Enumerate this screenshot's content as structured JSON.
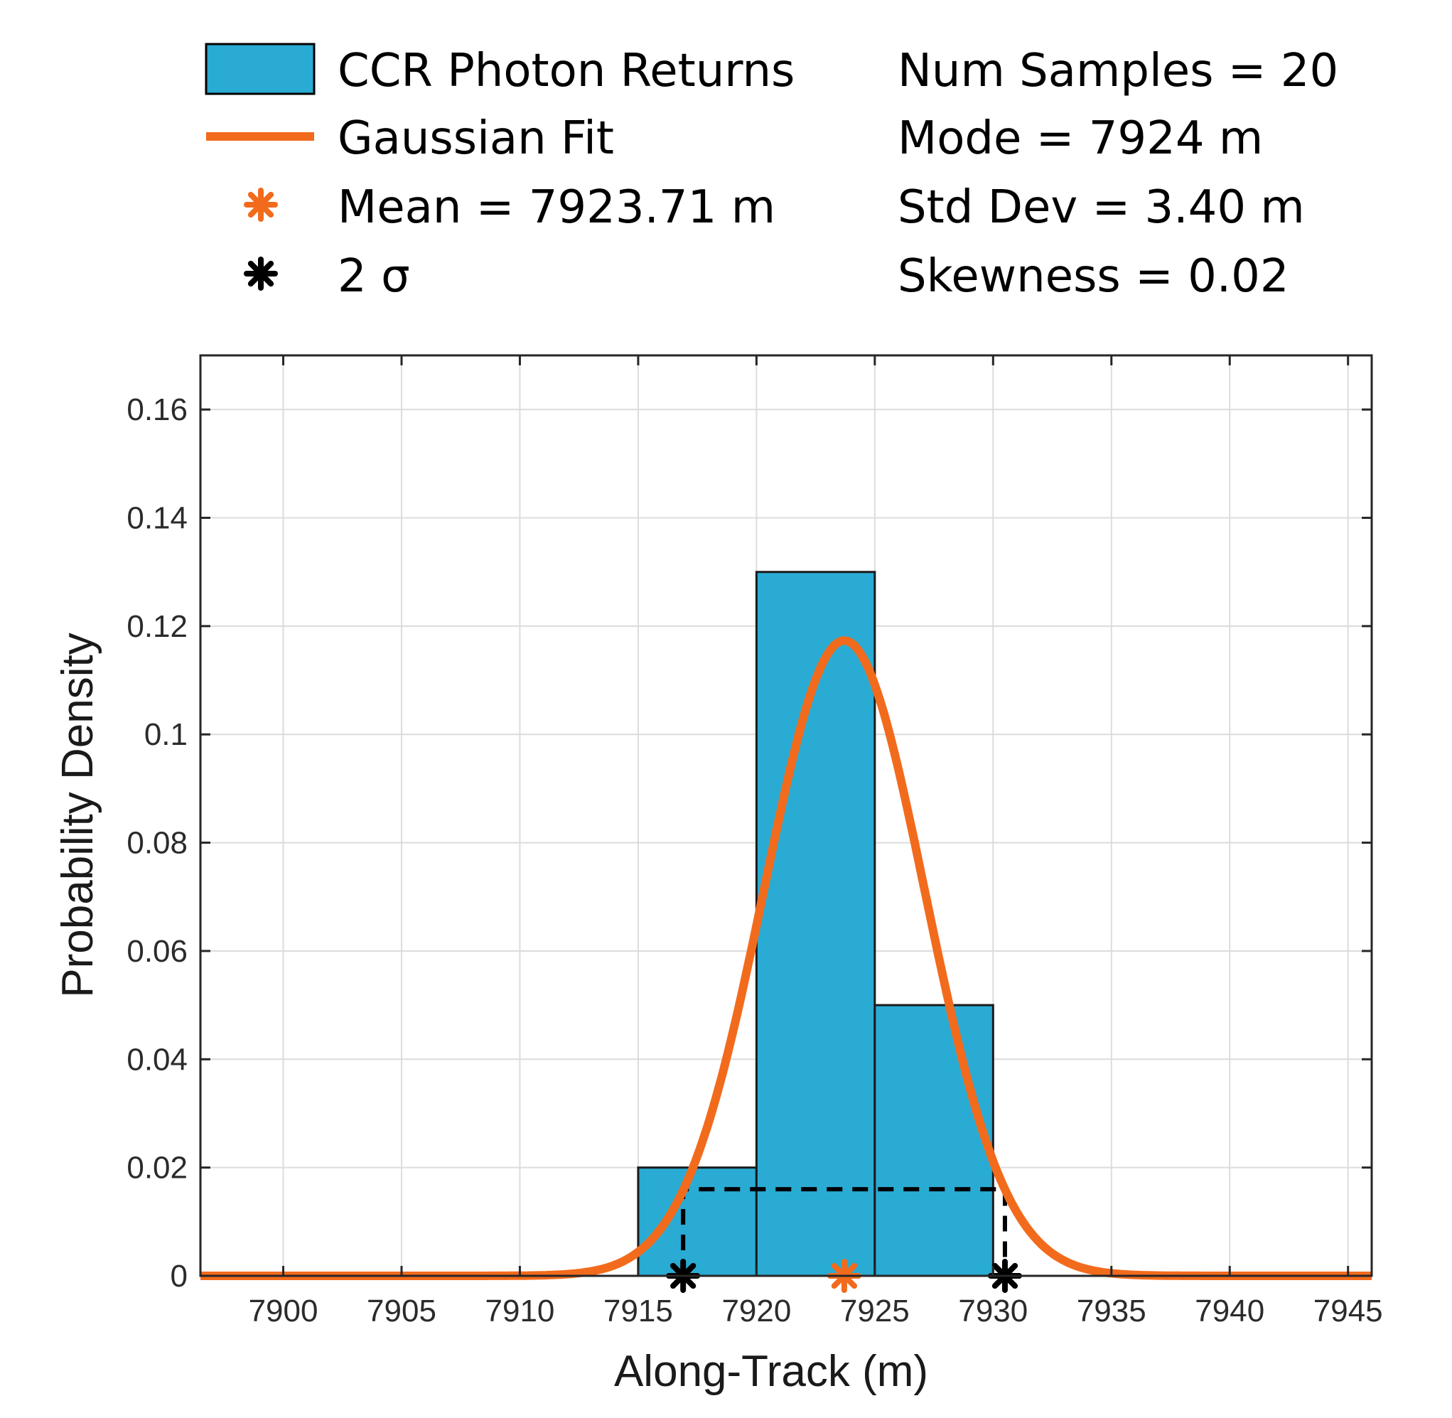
{
  "chart_data": {
    "type": "bar",
    "title": "",
    "xlabel": "Along-Track (m)",
    "ylabel": "Probability Density",
    "xlim": [
      7896.5,
      7946
    ],
    "ylim": [
      0,
      0.17
    ],
    "grid": true,
    "x_ticks": [
      7900,
      7905,
      7910,
      7915,
      7920,
      7925,
      7930,
      7935,
      7940,
      7945
    ],
    "y_ticks": [
      0,
      0.02,
      0.04,
      0.06,
      0.08,
      0.1,
      0.12,
      0.14,
      0.16
    ],
    "y_tick_labels": [
      "0",
      "0.02",
      "0.04",
      "0.06",
      "0.08",
      "0.1",
      "0.12",
      "0.14",
      "0.16"
    ],
    "histogram": {
      "name": "CCR Photon Returns",
      "color": "#2AABD3",
      "bin_edges": [
        7915,
        7920,
        7925,
        7930
      ],
      "values": [
        0.02,
        0.13,
        0.05
      ]
    },
    "gaussian_fit": {
      "name": "Gaussian Fit",
      "color": "#F26B1D",
      "mean": 7923.71,
      "std": 3.4
    },
    "mean_marker": {
      "label": "Mean = 7923.71 m",
      "x": 7923.71,
      "y": 0,
      "color": "#F26B1D"
    },
    "two_sigma": {
      "label": "2 σ",
      "x": [
        7916.9,
        7930.5
      ],
      "y": 0,
      "bracket_y": 0.016,
      "color": "#000000"
    },
    "legend_entries": [
      "CCR Photon Returns",
      "Gaussian Fit",
      "Mean = 7923.71 m",
      "2 σ"
    ],
    "stats": [
      "Num Samples = 20",
      "Mode = 7924 m",
      "Std Dev = 3.40 m",
      "Skewness = 0.02"
    ]
  }
}
